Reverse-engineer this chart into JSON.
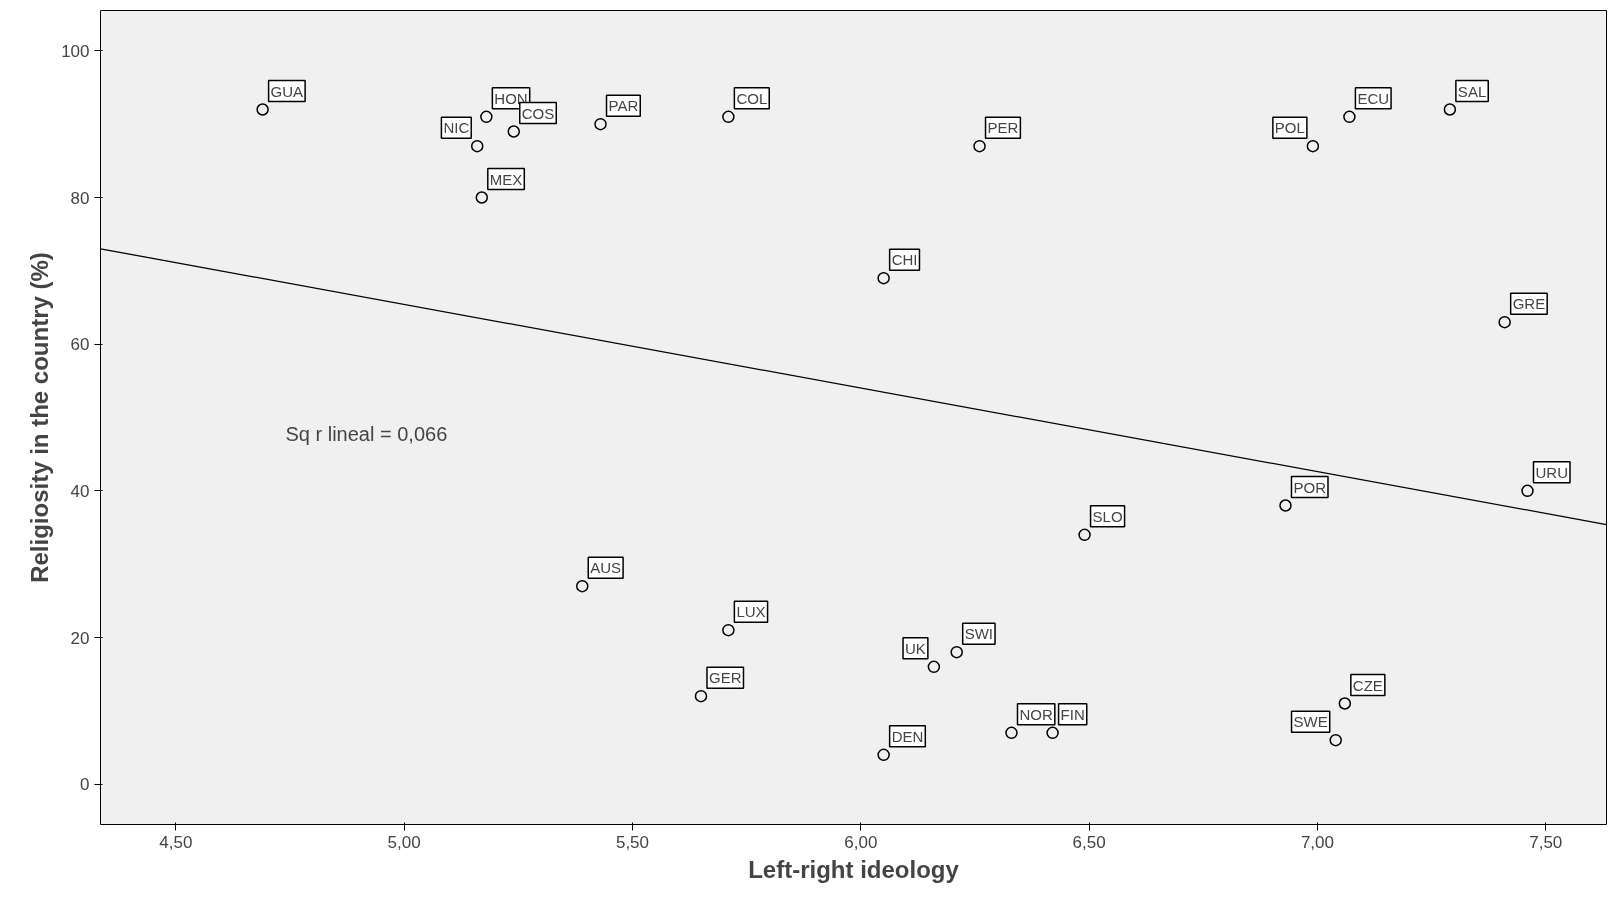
{
  "chart_data": {
    "type": "scatter",
    "xlabel": "Left-right ideology",
    "ylabel": "Religiosity in the country (%)",
    "xlim": [
      4.335,
      7.633
    ],
    "ylim": [
      -5.5,
      105.5
    ],
    "xticks": [
      {
        "value": 4.5,
        "label": "4,50"
      },
      {
        "value": 5.0,
        "label": "5,00"
      },
      {
        "value": 5.5,
        "label": "5,50"
      },
      {
        "value": 6.0,
        "label": "6,00"
      },
      {
        "value": 6.5,
        "label": "6,50"
      },
      {
        "value": 7.0,
        "label": "7,00"
      },
      {
        "value": 7.5,
        "label": "7,50"
      }
    ],
    "yticks": [
      0,
      20,
      40,
      60,
      80,
      100
    ],
    "grid": false,
    "series": [
      {
        "marker": "circle",
        "color": "#000000",
        "x": [
          4.69,
          5.18,
          5.16,
          5.24,
          5.17,
          5.43,
          5.71,
          6.26,
          6.05,
          7.07,
          6.99,
          7.29,
          7.41,
          7.46,
          6.93,
          6.49,
          5.39,
          5.71,
          5.65,
          6.21,
          6.16,
          6.05,
          6.33,
          6.42,
          7.06,
          7.04
        ],
        "values": [
          92,
          91,
          87,
          89,
          80,
          90,
          91,
          87,
          69,
          91,
          87,
          92,
          63,
          40,
          38,
          34,
          27,
          21,
          12,
          18,
          16,
          4,
          7,
          7,
          11,
          6
        ]
      },
      {
        "type": "line",
        "marker": "none",
        "color": "#000000",
        "x": [
          4.335,
          7.633
        ],
        "values": [
          73,
          35.4
        ]
      }
    ],
    "annotations": [
      {
        "text": "GUA",
        "x": 4.69,
        "y": 92
      },
      {
        "text": "HON",
        "x": 5.18,
        "y": 91
      },
      {
        "text": "NIC",
        "x": 5.16,
        "y": 87
      },
      {
        "text": "COS",
        "x": 5.24,
        "y": 89
      },
      {
        "text": "MEX",
        "x": 5.17,
        "y": 80
      },
      {
        "text": "PAR",
        "x": 5.43,
        "y": 90
      },
      {
        "text": "COL",
        "x": 5.71,
        "y": 91
      },
      {
        "text": "PER",
        "x": 6.26,
        "y": 87
      },
      {
        "text": "CHI",
        "x": 6.05,
        "y": 69
      },
      {
        "text": "ECU",
        "x": 7.07,
        "y": 91
      },
      {
        "text": "POL",
        "x": 6.99,
        "y": 87
      },
      {
        "text": "SAL",
        "x": 7.29,
        "y": 92
      },
      {
        "text": "GRE",
        "x": 7.41,
        "y": 63
      },
      {
        "text": "URU",
        "x": 7.46,
        "y": 40
      },
      {
        "text": "POR",
        "x": 6.93,
        "y": 38
      },
      {
        "text": "SLO",
        "x": 6.49,
        "y": 34
      },
      {
        "text": "AUS",
        "x": 5.39,
        "y": 27
      },
      {
        "text": "LUX",
        "x": 5.71,
        "y": 21
      },
      {
        "text": "GER",
        "x": 5.65,
        "y": 12
      },
      {
        "text": "SWI",
        "x": 6.21,
        "y": 18
      },
      {
        "text": "UK",
        "x": 6.16,
        "y": 16
      },
      {
        "text": "DEN",
        "x": 6.05,
        "y": 4
      },
      {
        "text": "NOR",
        "x": 6.33,
        "y": 7
      },
      {
        "text": "FIN",
        "x": 6.42,
        "y": 7
      },
      {
        "text": "CZE",
        "x": 7.06,
        "y": 11
      },
      {
        "text": "SWE",
        "x": 7.04,
        "y": 6
      },
      "Sq r lineal = 0,066"
    ]
  }
}
